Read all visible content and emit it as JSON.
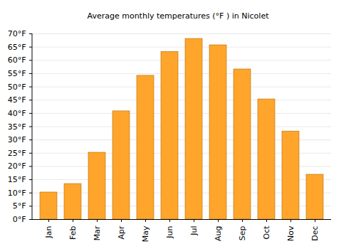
{
  "chart_data": {
    "type": "bar",
    "title": "Average monthly temperatures (°F ) in Nicolet",
    "categories": [
      "Jan",
      "Feb",
      "Mar",
      "Apr",
      "May",
      "Jun",
      "Jul",
      "Aug",
      "Sep",
      "Oct",
      "Nov",
      "Dec"
    ],
    "values": [
      10.2,
      13.4,
      25.2,
      40.8,
      54.2,
      63.2,
      68.1,
      65.7,
      56.6,
      45.3,
      33.2,
      16.9
    ],
    "color": "#ffa52c",
    "ylim": [
      0,
      70
    ],
    "yticks": [
      {
        "value": 0,
        "label": "0°F"
      },
      {
        "value": 5,
        "label": "5°F"
      },
      {
        "value": 10,
        "label": "10°F"
      },
      {
        "value": 15,
        "label": "15°F"
      },
      {
        "value": 20,
        "label": "20°F"
      },
      {
        "value": 25,
        "label": "25°F"
      },
      {
        "value": 30,
        "label": "30°F"
      },
      {
        "value": 35,
        "label": "35°F"
      },
      {
        "value": 40,
        "label": "40°F"
      },
      {
        "value": 45,
        "label": "45°F"
      },
      {
        "value": 50,
        "label": "50°F"
      },
      {
        "value": 55,
        "label": "55°F"
      },
      {
        "value": 60,
        "label": "60°F"
      },
      {
        "value": 65,
        "label": "65°F"
      },
      {
        "value": 70,
        "label": "70°F"
      }
    ],
    "grid": true
  }
}
